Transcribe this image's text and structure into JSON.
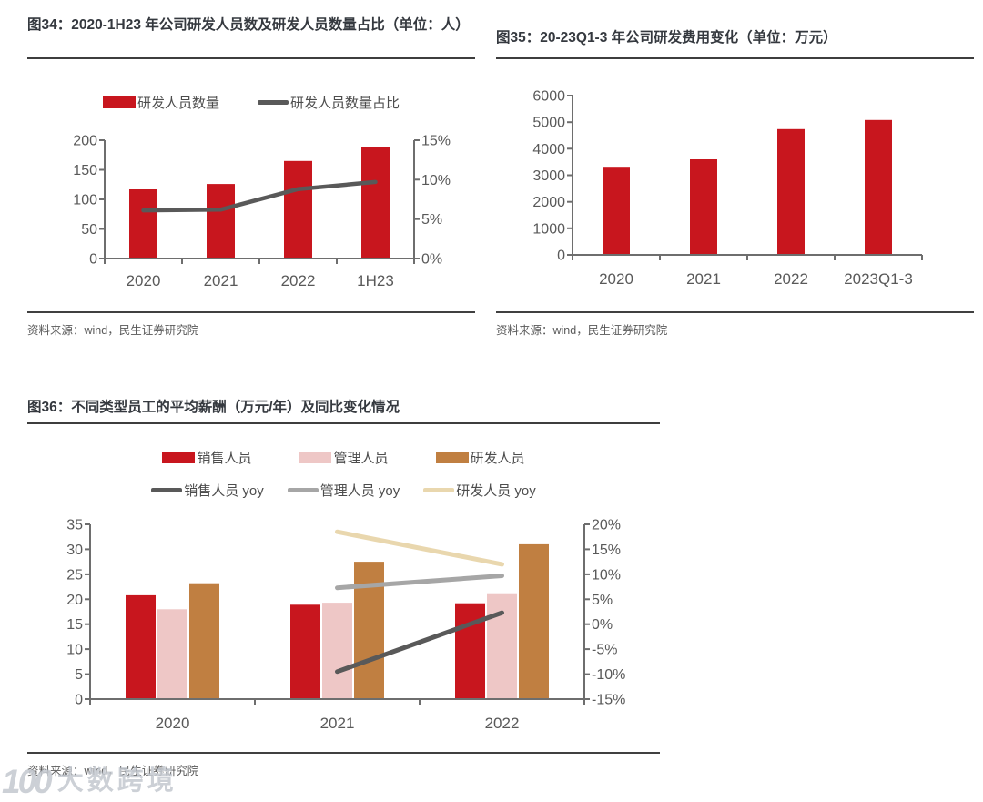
{
  "colors": {
    "bar_red": "#C8161E",
    "bar_pink": "#EEC7C6",
    "bar_brown": "#C07F41",
    "line_dark": "#595959",
    "line_gray": "#A6A6A6",
    "line_tan": "#E9D7AE",
    "axis_gray": "#6E6E6E",
    "tick_label_gray": "#595959",
    "title_color": "#35393F",
    "rule_dark": "#3D3D3D"
  },
  "watermark": {
    "logo_text": "100",
    "text": "大数跨境"
  },
  "chart_data": [
    {
      "id": "fig34",
      "type": "bar+line",
      "title": "图34：2020-1H23 年公司研发人员数及研发人员数量占比（单位：人）",
      "source": "资料来源：wind，民生证券研究院",
      "categories": [
        "2020",
        "2021",
        "2022",
        "1H23"
      ],
      "bar_series": [
        {
          "name": "研发人员数量",
          "color": "#C8161E",
          "values": [
            117,
            126,
            165,
            189
          ]
        }
      ],
      "line_series": [
        {
          "name": "研发人员数量占比",
          "color": "#595959",
          "axis": "right",
          "values": [
            6.1,
            6.2,
            8.8,
            9.7
          ]
        }
      ],
      "left_axis": {
        "min": 0,
        "max": 200,
        "step": 50
      },
      "right_axis": {
        "min": 0,
        "max": 15,
        "step": 5,
        "suffix": "%"
      },
      "legend_position": "top",
      "grid": false
    },
    {
      "id": "fig35",
      "type": "bar",
      "title": "图35：20-23Q1-3 年公司研发费用变化（单位：万元）",
      "source": "资料来源：wind，民生证券研究院",
      "categories": [
        "2020",
        "2021",
        "2022",
        "2023Q1-3"
      ],
      "bar_series": [
        {
          "name": "",
          "color": "#C8161E",
          "values": [
            3320,
            3600,
            4740,
            5080
          ]
        }
      ],
      "line_series": [],
      "left_axis": {
        "min": 0,
        "max": 6000,
        "step": 1000
      },
      "legend_position": "none",
      "grid": false
    },
    {
      "id": "fig36",
      "type": "grouped-bar+line",
      "title": "图36：不同类型员工的平均薪酬（万元/年）及同比变化情况",
      "source": "资料来源：wind，民生证券研究院",
      "categories": [
        "2020",
        "2021",
        "2022"
      ],
      "bar_series": [
        {
          "name": "销售人员",
          "color": "#C8161E",
          "values": [
            20.8,
            18.9,
            19.2
          ]
        },
        {
          "name": "管理人员",
          "color": "#EEC7C6",
          "values": [
            18.0,
            19.3,
            21.2
          ]
        },
        {
          "name": "研发人员",
          "color": "#C07F41",
          "values": [
            23.2,
            27.5,
            31.0
          ]
        }
      ],
      "line_series": [
        {
          "name": "销售人员 yoy",
          "color": "#595959",
          "axis": "right",
          "values": [
            null,
            -9.5,
            2.3
          ]
        },
        {
          "name": "管理人员 yoy",
          "color": "#A6A6A6",
          "axis": "right",
          "values": [
            null,
            7.3,
            9.7
          ]
        },
        {
          "name": "研发人员 yoy",
          "color": "#E9D7AE",
          "axis": "right",
          "values": [
            null,
            18.5,
            12.0
          ]
        }
      ],
      "left_axis": {
        "min": 0,
        "max": 35,
        "step": 5
      },
      "right_axis": {
        "min": -15,
        "max": 20,
        "step": 5,
        "suffix": "%"
      },
      "legend_position": "top-two-rows",
      "grid": false
    }
  ]
}
